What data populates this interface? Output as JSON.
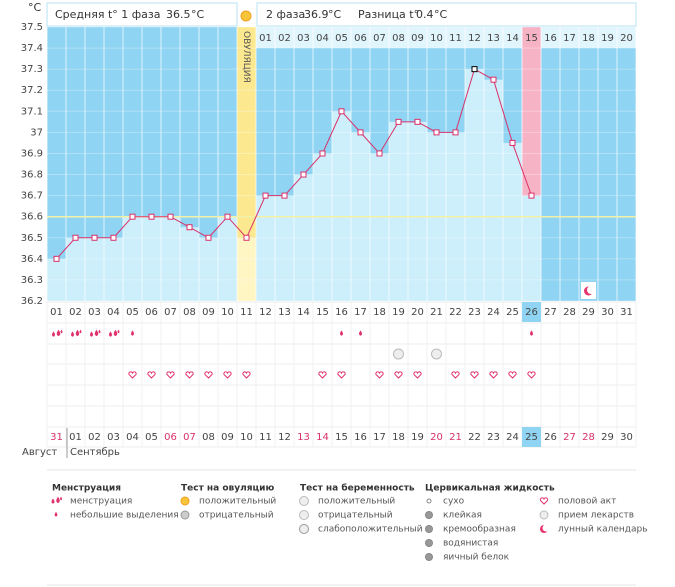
{
  "header": {
    "unit": "°C",
    "phase1": {
      "label": "Средняя t° 1 фаза",
      "value": 36.5,
      "unit": "°C"
    },
    "phase2": {
      "label": "2 фаза",
      "value": 36.9,
      "unit": "°C"
    },
    "difference": {
      "label": "Разница t°",
      "value": 0.4,
      "unit": "°C"
    }
  },
  "chart_data": {
    "type": "line",
    "categories": [
      "01",
      "02",
      "03",
      "04",
      "05",
      "06",
      "07",
      "08",
      "09",
      "10",
      "11",
      "12",
      "13",
      "14",
      "15",
      "16",
      "17",
      "18",
      "19",
      "20",
      "21",
      "22",
      "23",
      "24",
      "25",
      "26",
      "27",
      "28",
      "29",
      "30",
      "31"
    ],
    "values": [
      36.4,
      36.5,
      36.5,
      36.5,
      36.6,
      36.6,
      36.6,
      36.55,
      36.5,
      36.6,
      36.5,
      36.7,
      36.7,
      36.8,
      36.9,
      37.1,
      37.0,
      36.9,
      37.05,
      37.05,
      37.0,
      37.0,
      37.3,
      37.25,
      36.95,
      36.7,
      null,
      null,
      null,
      null,
      null
    ],
    "color": "#d9306a",
    "ylim": [
      36.2,
      37.5
    ],
    "yticks": [
      36.2,
      36.3,
      36.4,
      36.5,
      36.6,
      36.7,
      36.8,
      36.9,
      37,
      37.1,
      37.2,
      37.3,
      37.4,
      37.5
    ],
    "grid": true,
    "coverline": 36.6,
    "ovulation_label": "ОВУЛЯЦИЯ",
    "phase2_days": [
      "01",
      "02",
      "03",
      "04",
      "05",
      "06",
      "07",
      "08",
      "09",
      "10",
      "11",
      "12",
      "13",
      "14",
      "15",
      "16",
      "17",
      "18",
      "19",
      "20"
    ],
    "dates": [
      "31",
      "01",
      "02",
      "03",
      "04",
      "05",
      "06",
      "07",
      "08",
      "09",
      "10",
      "11",
      "12",
      "13",
      "14",
      "15",
      "16",
      "17",
      "18",
      "19",
      "20",
      "21",
      "22",
      "23",
      "24",
      "25",
      "26",
      "27",
      "28",
      "29",
      "30"
    ],
    "months": [
      "Август",
      "Сентябрь"
    ]
  },
  "legend": [
    {
      "title": "Менструация",
      "items": [
        "менструация",
        "небольшие выделения"
      ]
    },
    {
      "title": "Тест на овуляцию",
      "items": [
        "положительный",
        "отрицательный"
      ]
    },
    {
      "title": "Тест на беременность",
      "items": [
        "положительный",
        "отрицательный",
        "слабоположительный"
      ]
    },
    {
      "title": "Цервикальная жидкость",
      "items": [
        "сухо",
        "клейкая",
        "кремообразная",
        "водянистая",
        "яичный белок"
      ]
    },
    {
      "items": [
        "половой акт",
        "прием лекарств",
        "лунный календарь"
      ]
    }
  ]
}
